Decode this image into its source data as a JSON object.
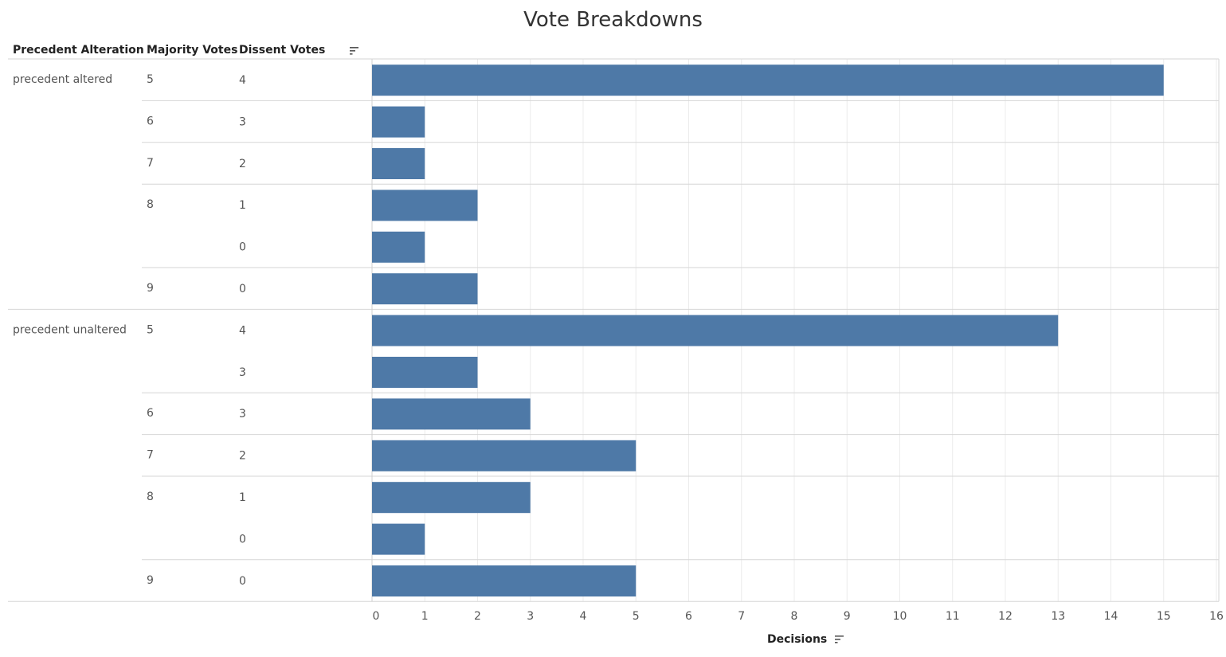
{
  "title": "Vote Breakdowns",
  "headers": {
    "precedent": "Precedent Alteration",
    "majority": "Majority Votes",
    "dissent": "Dissent Votes"
  },
  "icons": {
    "header_sort": "sort-descending-icon",
    "axis_sort": "sort-descending-icon"
  },
  "colors": {
    "bar": "#4e79a7"
  },
  "chart_data": {
    "type": "bar",
    "orientation": "horizontal",
    "title": "Vote Breakdowns",
    "xlabel": "Decisions",
    "xlim": [
      0,
      16
    ],
    "xticks": [
      0,
      1,
      2,
      3,
      4,
      5,
      6,
      7,
      8,
      9,
      10,
      11,
      12,
      13,
      14,
      15,
      16
    ],
    "grid": true,
    "rows": [
      {
        "precedent": "precedent altered",
        "majority": "5",
        "dissent": "4",
        "value": 15
      },
      {
        "precedent": "",
        "majority": "6",
        "dissent": "3",
        "value": 1
      },
      {
        "precedent": "",
        "majority": "7",
        "dissent": "2",
        "value": 1
      },
      {
        "precedent": "",
        "majority": "8",
        "dissent": "1",
        "value": 2
      },
      {
        "precedent": "",
        "majority": "",
        "dissent": "0",
        "value": 1
      },
      {
        "precedent": "",
        "majority": "9",
        "dissent": "0",
        "value": 2
      },
      {
        "precedent": "precedent unaltered",
        "majority": "5",
        "dissent": "4",
        "value": 13
      },
      {
        "precedent": "",
        "majority": "",
        "dissent": "3",
        "value": 2
      },
      {
        "precedent": "",
        "majority": "6",
        "dissent": "3",
        "value": 3
      },
      {
        "precedent": "",
        "majority": "7",
        "dissent": "2",
        "value": 5
      },
      {
        "precedent": "",
        "majority": "8",
        "dissent": "1",
        "value": 3
      },
      {
        "precedent": "",
        "majority": "",
        "dissent": "0",
        "value": 1
      },
      {
        "precedent": "",
        "majority": "9",
        "dissent": "0",
        "value": 5
      }
    ]
  }
}
